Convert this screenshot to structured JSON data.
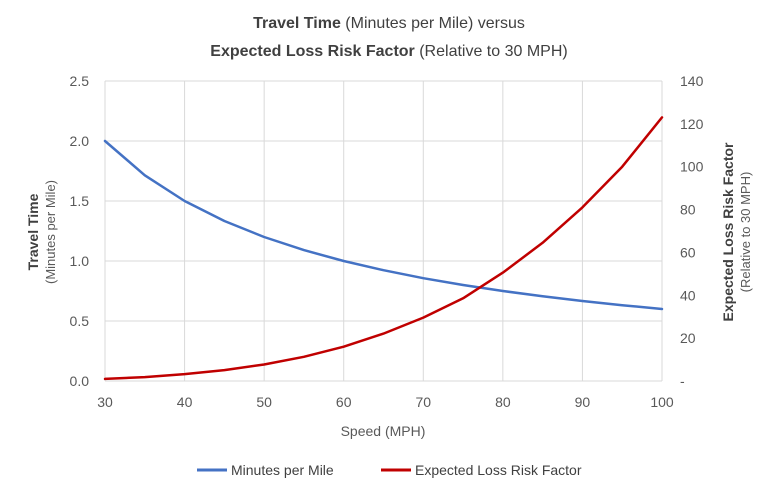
{
  "chart_data": {
    "type": "line",
    "title": {
      "line1_bold": "Travel Time",
      "line1_rest": " (Minutes per Mile) versus",
      "line2_bold": "Expected Loss Risk Factor",
      "line2_rest": " (Relative to 30 MPH)"
    },
    "xlabel": "Speed (MPH)",
    "ylabel_left": {
      "bold": "Travel Time",
      "sub": "(Minutes per Mile)"
    },
    "ylabel_right": {
      "bold": "Expected Loss Risk Factor",
      "sub": "(Relative to 30 MPH)"
    },
    "xlim": [
      30,
      100
    ],
    "ylim_left": [
      0,
      2.5
    ],
    "ylim_right": [
      0,
      140
    ],
    "x_ticks": [
      "30",
      "40",
      "50",
      "60",
      "70",
      "80",
      "90",
      "100"
    ],
    "y_left_ticks": [
      "0.0",
      "0.5",
      "1.0",
      "1.5",
      "2.0",
      "2.5"
    ],
    "y_right_ticks": [
      "-",
      "20",
      "40",
      "60",
      "80",
      "100",
      "120",
      "140"
    ],
    "grid": true,
    "legend_position": "bottom",
    "x": [
      30,
      35,
      40,
      45,
      50,
      55,
      60,
      65,
      70,
      75,
      80,
      85,
      90,
      95,
      100
    ],
    "series": [
      {
        "name": "Minutes per Mile",
        "axis": "left",
        "color": "#4472C4",
        "values": [
          2.0,
          1.714,
          1.5,
          1.333,
          1.2,
          1.091,
          1.0,
          0.923,
          0.857,
          0.8,
          0.75,
          0.706,
          0.667,
          0.632,
          0.6
        ]
      },
      {
        "name": "Expected Loss Risk Factor",
        "axis": "right",
        "color": "#C00000",
        "values": [
          1,
          1.8,
          3.2,
          5.1,
          7.7,
          11.3,
          16.0,
          22.1,
          29.6,
          38.6,
          50.6,
          64.5,
          81.0,
          100.0,
          123.0
        ]
      }
    ]
  }
}
